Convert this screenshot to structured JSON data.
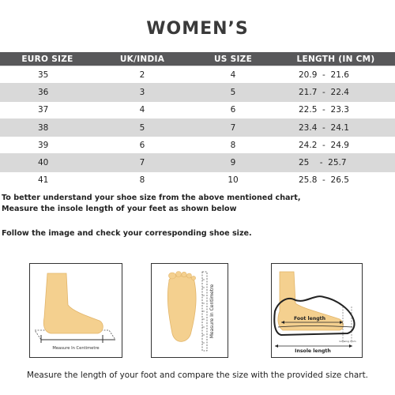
{
  "title": "WOMEN’S",
  "table": {
    "headers": [
      "EURO SIZE",
      "UK/INDIA",
      "US SIZE",
      "LENGTH (IN CM)"
    ],
    "rows": [
      {
        "euro": "35",
        "uk": "2",
        "us": "4",
        "length": "20.9  -  21.6"
      },
      {
        "euro": "36",
        "uk": "3",
        "us": "5",
        "length": "21.7  -  22.4"
      },
      {
        "euro": "37",
        "uk": "4",
        "us": "6",
        "length": "22.5  -  23.3"
      },
      {
        "euro": "38",
        "uk": "5",
        "us": "7",
        "length": "23.4  -  24.1"
      },
      {
        "euro": "39",
        "uk": "6",
        "us": "8",
        "length": "24.2  -  24.9"
      },
      {
        "euro": "40",
        "uk": "7",
        "us": "9",
        "length": "25    -  25.7"
      },
      {
        "euro": "41",
        "uk": "8",
        "us": "10",
        "length": "25.8  -  26.5"
      }
    ]
  },
  "instructions": {
    "line1": "To better understand your shoe size from the above mentioned chart,",
    "line2": "Measure the insole length of your feet as shown below",
    "line3": "Follow the image and check your corresponding shoe size."
  },
  "panels": {
    "side_label": "Measure In Centimetre",
    "top_label": "Measure In Centimetre",
    "foot_length_label": "Foot length",
    "insole_length_label": "Insole length",
    "growing_room_label": "Growing room"
  },
  "footer": "Measure the length of your foot and compare the size with the provided size chart.",
  "colors": {
    "header_bg": "#58585a",
    "stripe": "#d9d9d9",
    "skin": "#f4d08f"
  }
}
